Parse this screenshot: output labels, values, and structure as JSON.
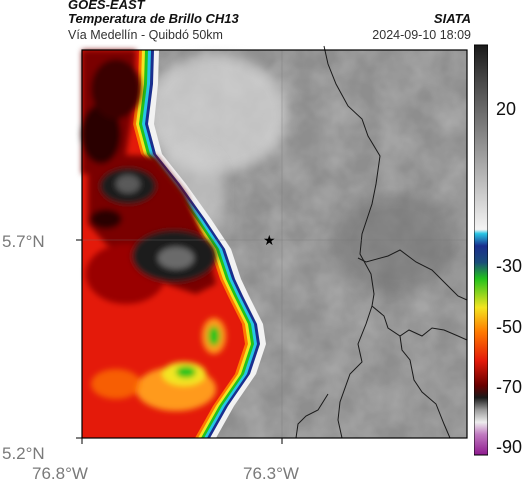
{
  "header": {
    "title_line1": "GOES-EAST",
    "title_line2": "Temperatura de Brillo CH13",
    "brand": "SIATA",
    "subtitle": "Vía Medellín - Quibdó 50km",
    "timestamp": "2024-09-10 18:09"
  },
  "map": {
    "y_ticks": [
      "5.7°N",
      "5.2°N"
    ],
    "x_ticks": [
      "76.8°W",
      "76.3°W"
    ],
    "marker": "star-icon",
    "colors": {
      "cold_black": "#1a1a1a",
      "deep_red": "#7a0000",
      "red": "#e41a0a",
      "orange": "#ff7a00",
      "yellow": "#f3e520",
      "green": "#22c21c",
      "cyan": "#27c6e5",
      "navy": "#1a2e8e",
      "warm_gray": "#8c8c8c"
    }
  },
  "colorbar": {
    "ticks": [
      "20",
      "-30",
      "-50",
      "-70",
      "-90"
    ],
    "units_note": ""
  }
}
